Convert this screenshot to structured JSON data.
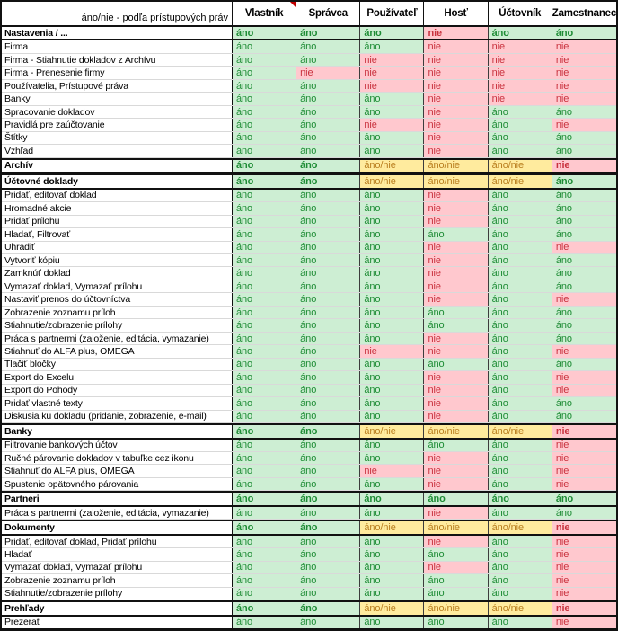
{
  "colors": {
    "yes_bg": "#cdeed3",
    "yes_text": "#1e8c35",
    "no_bg": "#ffc8ce",
    "no_text": "#c9323e",
    "mixed_bg": "#ffeb9e",
    "mixed_text": "#b97e1f",
    "grid_dark": "#3c3c3c",
    "grid_light": "#d9d9d9",
    "frame": "#111111",
    "comment_flag": "#c00000"
  },
  "table": {
    "corner_label": "áno/nie - podľa prístupových práv",
    "columns": [
      "Vlastník",
      "Správca",
      "Používateľ",
      "Hosť",
      "Účtovník",
      "Zamestnanec"
    ],
    "comment_flag_on_column_index": 0,
    "value_yes": "áno",
    "value_no": "nie",
    "value_mixed": "áno/nie",
    "rows": [
      {
        "label": "Nastavenia / ...",
        "section": true,
        "values": [
          "áno",
          "áno",
          "áno",
          "nie",
          "áno",
          "áno"
        ]
      },
      {
        "label": "Firma",
        "section": false,
        "values": [
          "áno",
          "áno",
          "áno",
          "nie",
          "nie",
          "nie"
        ]
      },
      {
        "label": "Firma - Stiahnutie dokladov z Archívu",
        "section": false,
        "values": [
          "áno",
          "áno",
          "nie",
          "nie",
          "nie",
          "nie"
        ]
      },
      {
        "label": "Firma - Prenesenie firmy",
        "section": false,
        "values": [
          "áno",
          "nie",
          "nie",
          "nie",
          "nie",
          "nie"
        ]
      },
      {
        "label": "Používatelia, Prístupové práva",
        "section": false,
        "values": [
          "áno",
          "áno",
          "nie",
          "nie",
          "nie",
          "nie"
        ]
      },
      {
        "label": "Banky",
        "section": false,
        "values": [
          "áno",
          "áno",
          "áno",
          "nie",
          "nie",
          "nie"
        ]
      },
      {
        "label": "Spracovanie dokladov",
        "section": false,
        "values": [
          "áno",
          "áno",
          "áno",
          "nie",
          "áno",
          "áno"
        ]
      },
      {
        "label": "Pravidlá pre zaúčtovanie",
        "section": false,
        "values": [
          "áno",
          "áno",
          "nie",
          "nie",
          "áno",
          "nie"
        ]
      },
      {
        "label": "Štítky",
        "section": false,
        "values": [
          "áno",
          "áno",
          "áno",
          "nie",
          "áno",
          "áno"
        ]
      },
      {
        "label": "Vzhľad",
        "section": false,
        "values": [
          "áno",
          "áno",
          "áno",
          "nie",
          "áno",
          "áno"
        ]
      },
      {
        "label": "Archív",
        "section": true,
        "values": [
          "áno",
          "áno",
          "áno/nie",
          "áno/nie",
          "áno/nie",
          "nie"
        ]
      },
      {
        "label": "Účtovné doklady",
        "section": true,
        "values": [
          "áno",
          "áno",
          "áno/nie",
          "áno/nie",
          "áno/nie",
          "áno"
        ]
      },
      {
        "label": "Pridať, editovať doklad",
        "section": false,
        "values": [
          "áno",
          "áno",
          "áno",
          "nie",
          "áno",
          "áno"
        ]
      },
      {
        "label": "Hromadné akcie",
        "section": false,
        "values": [
          "áno",
          "áno",
          "áno",
          "nie",
          "áno",
          "áno"
        ]
      },
      {
        "label": "Pridať prílohu",
        "section": false,
        "values": [
          "áno",
          "áno",
          "áno",
          "nie",
          "áno",
          "áno"
        ]
      },
      {
        "label": "Hladať, Filtrovať",
        "section": false,
        "values": [
          "áno",
          "áno",
          "áno",
          "áno",
          "áno",
          "áno"
        ]
      },
      {
        "label": "Uhradiť",
        "section": false,
        "values": [
          "áno",
          "áno",
          "áno",
          "nie",
          "áno",
          "nie"
        ]
      },
      {
        "label": "Vytvoriť kópiu",
        "section": false,
        "values": [
          "áno",
          "áno",
          "áno",
          "nie",
          "áno",
          "áno"
        ]
      },
      {
        "label": "Zamknúť doklad",
        "section": false,
        "values": [
          "áno",
          "áno",
          "áno",
          "nie",
          "áno",
          "áno"
        ]
      },
      {
        "label": "Vymazať doklad, Vymazať prílohu",
        "section": false,
        "values": [
          "áno",
          "áno",
          "áno",
          "nie",
          "áno",
          "áno"
        ]
      },
      {
        "label": "Nastaviť prenos do účtovníctva",
        "section": false,
        "values": [
          "áno",
          "áno",
          "áno",
          "nie",
          "áno",
          "nie"
        ]
      },
      {
        "label": "Zobrazenie zoznamu príloh",
        "section": false,
        "values": [
          "áno",
          "áno",
          "áno",
          "áno",
          "áno",
          "áno"
        ]
      },
      {
        "label": "Stiahnutie/zobrazenie prílohy",
        "section": false,
        "values": [
          "áno",
          "áno",
          "áno",
          "áno",
          "áno",
          "áno"
        ]
      },
      {
        "label": "Práca s partnermi (založenie, editácia, vymazanie)",
        "section": false,
        "values": [
          "áno",
          "áno",
          "áno",
          "nie",
          "áno",
          "áno"
        ]
      },
      {
        "label": "Stiahnuť do ALFA plus, OMEGA",
        "section": false,
        "values": [
          "áno",
          "áno",
          "nie",
          "nie",
          "áno",
          "nie"
        ]
      },
      {
        "label": "Tlačiť bločky",
        "section": false,
        "values": [
          "áno",
          "áno",
          "áno",
          "áno",
          "áno",
          "áno"
        ]
      },
      {
        "label": "Export do Excelu",
        "section": false,
        "values": [
          "áno",
          "áno",
          "áno",
          "nie",
          "áno",
          "nie"
        ]
      },
      {
        "label": "Export do Pohody",
        "section": false,
        "values": [
          "áno",
          "áno",
          "áno",
          "nie",
          "áno",
          "nie"
        ]
      },
      {
        "label": "Pridať vlastné texty",
        "section": false,
        "values": [
          "áno",
          "áno",
          "áno",
          "nie",
          "áno",
          "áno"
        ]
      },
      {
        "label": "Diskusia ku dokladu (pridanie, zobrazenie, e-mail)",
        "section": false,
        "values": [
          "áno",
          "áno",
          "áno",
          "nie",
          "áno",
          "áno"
        ]
      },
      {
        "label": "Banky",
        "section": true,
        "values": [
          "áno",
          "áno",
          "áno/nie",
          "áno/nie",
          "áno/nie",
          "nie"
        ]
      },
      {
        "label": "Filtrovanie bankových účtov",
        "section": false,
        "values": [
          "áno",
          "áno",
          "áno",
          "áno",
          "áno",
          "nie"
        ]
      },
      {
        "label": "Ručné párovanie dokladov v tabuľke cez ikonu",
        "section": false,
        "values": [
          "áno",
          "áno",
          "áno",
          "nie",
          "áno",
          "nie"
        ]
      },
      {
        "label": "Stiahnuť do ALFA plus, OMEGA",
        "section": false,
        "values": [
          "áno",
          "áno",
          "nie",
          "nie",
          "áno",
          "nie"
        ]
      },
      {
        "label": "Spustenie opätovného párovania",
        "section": false,
        "values": [
          "áno",
          "áno",
          "áno",
          "nie",
          "áno",
          "nie"
        ]
      },
      {
        "label": "Partneri",
        "section": true,
        "values": [
          "áno",
          "áno",
          "áno",
          "áno",
          "áno",
          "áno"
        ]
      },
      {
        "label": "Práca s partnermi (založenie, editácia, vymazanie)",
        "section": false,
        "values": [
          "áno",
          "áno",
          "áno",
          "nie",
          "áno",
          "áno"
        ]
      },
      {
        "label": "Dokumenty",
        "section": true,
        "values": [
          "áno",
          "áno",
          "áno/nie",
          "áno/nie",
          "áno/nie",
          "nie"
        ]
      },
      {
        "label": "Pridať, editovať doklad, Pridať prílohu",
        "section": false,
        "values": [
          "áno",
          "áno",
          "áno",
          "nie",
          "áno",
          "nie"
        ]
      },
      {
        "label": "Hladať",
        "section": false,
        "values": [
          "áno",
          "áno",
          "áno",
          "áno",
          "áno",
          "nie"
        ]
      },
      {
        "label": "Vymazať doklad, Vymazať prílohu",
        "section": false,
        "values": [
          "áno",
          "áno",
          "áno",
          "nie",
          "áno",
          "nie"
        ]
      },
      {
        "label": "Zobrazenie zoznamu príloh",
        "section": false,
        "values": [
          "áno",
          "áno",
          "áno",
          "áno",
          "áno",
          "nie"
        ]
      },
      {
        "label": "Stiahnutie/zobrazenie prílohy",
        "section": false,
        "values": [
          "áno",
          "áno",
          "áno",
          "áno",
          "áno",
          "nie"
        ]
      },
      {
        "label": "Prehľady",
        "section": true,
        "values": [
          "áno",
          "áno",
          "áno/nie",
          "áno/nie",
          "áno/nie",
          "nie"
        ]
      },
      {
        "label": "Prezerať",
        "section": false,
        "values": [
          "áno",
          "áno",
          "áno",
          "áno",
          "áno",
          "nie"
        ]
      }
    ]
  }
}
